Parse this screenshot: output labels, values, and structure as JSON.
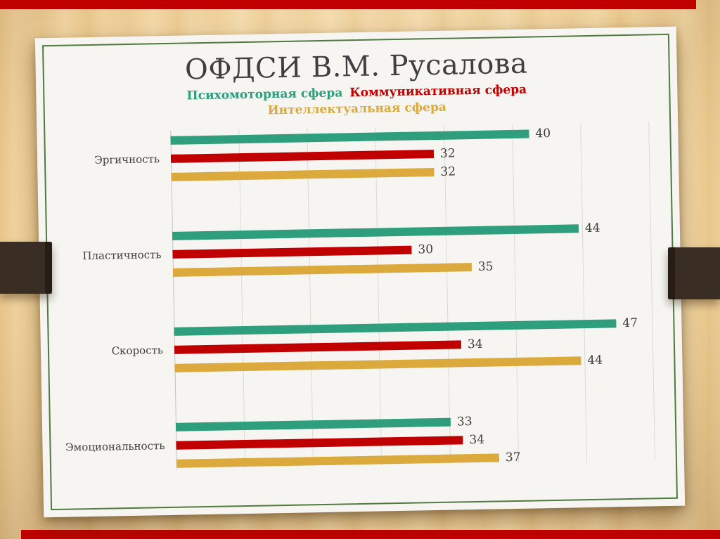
{
  "slide": {
    "title": "ОФДСИ В.М. Русалова"
  },
  "chart_data": {
    "type": "bar",
    "orientation": "horizontal",
    "title": "ОФДСИ В.М. Русалова",
    "categories": [
      "Эргичность",
      "Пластичность",
      "Скорость",
      "Эмоциональность"
    ],
    "series": [
      {
        "name": "Психомоторная сфера",
        "color": "#2f9e7c",
        "values": [
          40,
          44,
          47,
          33
        ]
      },
      {
        "name": "Коммуникативная сфера",
        "color": "#c00000",
        "values": [
          32,
          30,
          34,
          34
        ]
      },
      {
        "name": "Интеллектуальная сфера",
        "color": "#dca93c",
        "values": [
          32,
          35,
          44,
          37
        ]
      }
    ],
    "xlim": [
      10,
      50
    ],
    "grid": true,
    "gridline_count": 8,
    "legend_position": "top",
    "value_labels": true
  },
  "theme": {
    "accent_red": "#c00000",
    "card_border_green": "#517a3e",
    "strap_brown": "#3a2d23",
    "card_background": "#f6f5f1"
  }
}
